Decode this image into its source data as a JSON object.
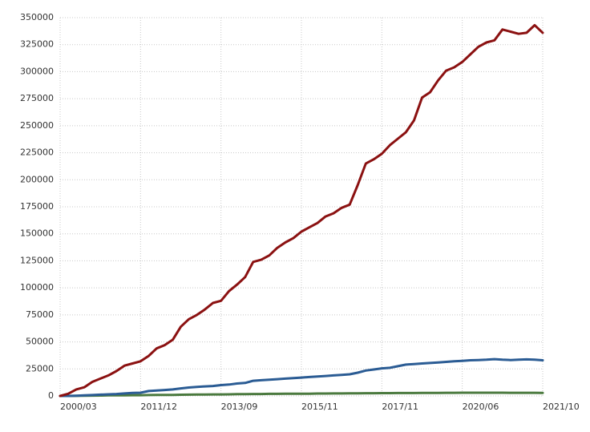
{
  "chart_data": {
    "type": "line",
    "categories": [
      "2000/03",
      null,
      null,
      null,
      null,
      null,
      null,
      null,
      null,
      null,
      "2011/12",
      null,
      null,
      null,
      null,
      null,
      null,
      null,
      null,
      null,
      "2013/09",
      null,
      null,
      null,
      null,
      null,
      null,
      null,
      null,
      null,
      "2015/11",
      null,
      null,
      null,
      null,
      null,
      null,
      null,
      null,
      null,
      "2017/11",
      null,
      null,
      null,
      null,
      null,
      null,
      null,
      null,
      null,
      "2020/06",
      null,
      null,
      null,
      null,
      null,
      null,
      null,
      null,
      null,
      "2021/10"
    ],
    "series": [
      {
        "color": "#8b1111",
        "values": [
          0,
          2000,
          6000,
          8000,
          13000,
          16000,
          19000,
          23000,
          28000,
          30000,
          32000,
          37000,
          44000,
          47000,
          52000,
          64000,
          71000,
          75000,
          80000,
          86000,
          88000,
          97000,
          103000,
          110000,
          124000,
          126000,
          130000,
          137000,
          142000,
          146000,
          152000,
          156000,
          160000,
          166000,
          169000,
          174000,
          177000,
          195000,
          215000,
          219000,
          224000,
          232000,
          238000,
          244000,
          255000,
          276000,
          281000,
          292000,
          301000,
          304000,
          309000,
          316000,
          323000,
          327000,
          329000,
          339000,
          337000,
          335000,
          336000,
          343000,
          336000
        ]
      },
      {
        "color": "#2b5c94",
        "values": [
          0,
          0,
          200,
          500,
          800,
          1200,
          1500,
          1800,
          2300,
          2800,
          3000,
          4500,
          5000,
          5500,
          6000,
          7000,
          7800,
          8300,
          8800,
          9200,
          10000,
          10500,
          11500,
          12000,
          14000,
          14500,
          15000,
          15500,
          16000,
          16500,
          17000,
          17500,
          18000,
          18500,
          19000,
          19500,
          20000,
          21500,
          23500,
          24500,
          25500,
          26000,
          27500,
          29000,
          29500,
          30000,
          30500,
          31000,
          31500,
          32000,
          32500,
          33000,
          33200,
          33500,
          34000,
          33500,
          33200,
          33500,
          33800,
          33500,
          33000
        ]
      },
      {
        "color": "#4b7a3f",
        "values": [
          0,
          0,
          100,
          200,
          300,
          400,
          500,
          500,
          600,
          700,
          700,
          800,
          900,
          1000,
          1000,
          1100,
          1200,
          1300,
          1300,
          1400,
          1400,
          1500,
          1600,
          1700,
          1800,
          1800,
          1900,
          1900,
          2000,
          2000,
          2100,
          2100,
          2200,
          2200,
          2300,
          2300,
          2400,
          2400,
          2500,
          2500,
          2600,
          2600,
          2700,
          2700,
          2700,
          2800,
          2800,
          2800,
          2900,
          2900,
          3000,
          3000,
          3000,
          3000,
          3000,
          3000,
          2900,
          2900,
          2900,
          2900,
          2800
        ]
      }
    ],
    "ylim": [
      0,
      350000
    ],
    "yticks": [
      0,
      25000,
      50000,
      75000,
      100000,
      125000,
      150000,
      175000,
      200000,
      225000,
      250000,
      275000,
      300000,
      325000,
      350000
    ],
    "grid": true
  }
}
